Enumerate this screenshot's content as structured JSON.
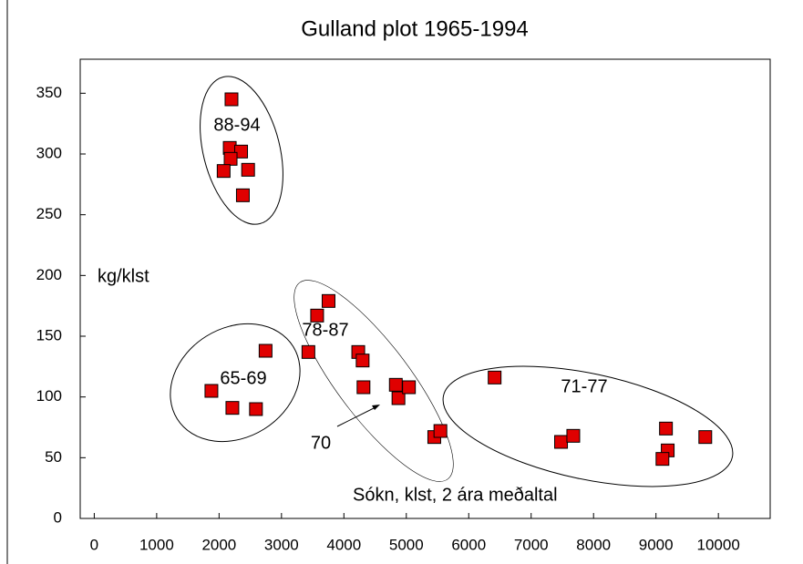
{
  "chart_data": {
    "type": "scatter",
    "title": "Gulland plot 1965-1994",
    "x": [
      2199,
      2171,
      2353,
      2185,
      2465,
      2073,
      2381,
      1877,
      2213,
      2591,
      2745,
      3431,
      3571,
      3754,
      4230,
      4300,
      4314,
      4832,
      4874,
      5042,
      5448,
      5546,
      6415,
      7479,
      7675,
      9160,
      9188,
      9104,
      9790
    ],
    "values": [
      345,
      305,
      302,
      296,
      287,
      286,
      266,
      105,
      91,
      90,
      138,
      137,
      167,
      179,
      137,
      130,
      108,
      110,
      99,
      108,
      67,
      72,
      116,
      63,
      68,
      74,
      56,
      49,
      67
    ],
    "color": "#e00000",
    "xlim": [
      -225,
      10830
    ],
    "xticks": [
      0,
      1000,
      2000,
      3000,
      4000,
      5000,
      6000,
      7000,
      8000,
      9000,
      10000
    ],
    "ylim": [
      0,
      378
    ],
    "yticks": [
      0,
      50,
      100,
      150,
      200,
      250,
      300,
      350
    ],
    "ylabel": "kg/klst",
    "xlabel": "Sókn, klst, 2 ára meðaltal",
    "annotations": [
      "88-94",
      "65-69",
      "78-87",
      "71-77",
      "70"
    ]
  }
}
